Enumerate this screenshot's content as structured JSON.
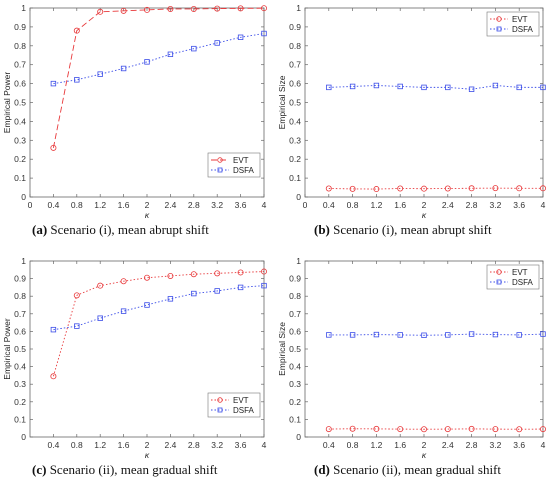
{
  "chart_data": [
    {
      "type": "line",
      "panel": "a",
      "x": [
        0.4,
        0.8,
        1.2,
        1.6,
        2.0,
        2.4,
        2.8,
        3.2,
        3.6,
        4.0
      ],
      "xlim": [
        0,
        4
      ],
      "ylim": [
        0,
        1
      ],
      "xticks": [
        "0",
        "0.4",
        "0.8",
        "1.2",
        "1.6",
        "2",
        "2.4",
        "2.8",
        "3.2",
        "3.6",
        "4"
      ],
      "yticks": [
        "0",
        "0.1",
        "0.2",
        "0.3",
        "0.4",
        "0.5",
        "0.6",
        "0.7",
        "0.8",
        "0.9",
        "1"
      ],
      "xlabel": "κ",
      "ylabel": "Empirical Power",
      "legend": "bottom-right",
      "series": [
        {
          "name": "EVT",
          "color": "#e8393b",
          "dash": "6,3",
          "marker": "circle",
          "values": [
            0.26,
            0.88,
            0.98,
            0.985,
            0.99,
            0.995,
            0.995,
            0.997,
            0.998,
            0.999
          ]
        },
        {
          "name": "DSFA",
          "color": "#3b4de8",
          "dash": "1.5,2",
          "marker": "square",
          "values": [
            0.6,
            0.62,
            0.65,
            0.68,
            0.715,
            0.755,
            0.785,
            0.815,
            0.845,
            0.865
          ]
        }
      ],
      "caption_label": "(a)",
      "caption_text": "Scenario (i), mean abrupt shift"
    },
    {
      "type": "line",
      "panel": "b",
      "x": [
        0.4,
        0.8,
        1.2,
        1.6,
        2.0,
        2.4,
        2.8,
        3.2,
        3.6,
        4.0
      ],
      "xlim": [
        0,
        4
      ],
      "ylim": [
        0,
        1
      ],
      "xticks": [
        "0",
        "0.4",
        "0.8",
        "1.2",
        "1.6",
        "2",
        "2.4",
        "2.8",
        "3.2",
        "3.6",
        "4"
      ],
      "yticks": [
        "0",
        "0.1",
        "0.2",
        "0.3",
        "0.4",
        "0.5",
        "0.6",
        "0.7",
        "0.8",
        "0.9",
        "1"
      ],
      "xlabel": "κ",
      "ylabel": "Empirical Size",
      "legend": "top-right",
      "series": [
        {
          "name": "EVT",
          "color": "#e8393b",
          "dash": "1.5,2",
          "marker": "circle",
          "values": [
            0.045,
            0.043,
            0.042,
            0.045,
            0.044,
            0.045,
            0.046,
            0.047,
            0.046,
            0.046
          ]
        },
        {
          "name": "DSFA",
          "color": "#3b4de8",
          "dash": "1.5,2",
          "marker": "square",
          "values": [
            0.58,
            0.585,
            0.59,
            0.585,
            0.58,
            0.58,
            0.57,
            0.59,
            0.58,
            0.58
          ]
        }
      ],
      "caption_label": "(b)",
      "caption_text": "Scenario (i), mean abrupt shift"
    },
    {
      "type": "line",
      "panel": "c",
      "x": [
        0.4,
        0.8,
        1.2,
        1.6,
        2.0,
        2.4,
        2.8,
        3.2,
        3.6,
        4.0
      ],
      "xlim": [
        0,
        4
      ],
      "ylim": [
        0,
        1
      ],
      "xticks": [
        "0.4",
        "0.8",
        "1.2",
        "1.6",
        "2",
        "2.4",
        "2.8",
        "3.2",
        "3.6",
        "4"
      ],
      "yticks": [
        "0",
        "0.1",
        "0.2",
        "0.3",
        "0.4",
        "0.5",
        "0.6",
        "0.7",
        "0.8",
        "0.9",
        "1"
      ],
      "xlabel": "κ",
      "ylabel": "Empirical Power",
      "legend": "bottom-right",
      "series": [
        {
          "name": "EVT",
          "color": "#e8393b",
          "dash": "1.5,2",
          "marker": "circle",
          "values": [
            0.345,
            0.805,
            0.86,
            0.885,
            0.905,
            0.915,
            0.925,
            0.93,
            0.935,
            0.94
          ]
        },
        {
          "name": "DSFA",
          "color": "#3b4de8",
          "dash": "1.5,2",
          "marker": "square",
          "values": [
            0.61,
            0.63,
            0.675,
            0.715,
            0.75,
            0.785,
            0.815,
            0.83,
            0.85,
            0.86
          ]
        }
      ],
      "caption_label": "(c)",
      "caption_text": "Scenario (ii), mean gradual shift"
    },
    {
      "type": "line",
      "panel": "d",
      "x": [
        0.4,
        0.8,
        1.2,
        1.6,
        2.0,
        2.4,
        2.8,
        3.2,
        3.6,
        4.0
      ],
      "xlim": [
        0,
        4
      ],
      "ylim": [
        0,
        1
      ],
      "xticks": [
        "0.4",
        "0.8",
        "1.2",
        "1.6",
        "2",
        "2.4",
        "2.8",
        "3.2",
        "3.6",
        "4"
      ],
      "yticks": [
        "0",
        "0.1",
        "0.2",
        "0.3",
        "0.4",
        "0.5",
        "0.6",
        "0.7",
        "0.8",
        "0.9",
        "1"
      ],
      "xlabel": "κ",
      "ylabel": "Empirical Size",
      "legend": "top-right",
      "series": [
        {
          "name": "EVT",
          "color": "#e8393b",
          "dash": "1.5,2",
          "marker": "circle",
          "values": [
            0.045,
            0.047,
            0.046,
            0.045,
            0.044,
            0.045,
            0.046,
            0.045,
            0.044,
            0.045
          ]
        },
        {
          "name": "DSFA",
          "color": "#3b4de8",
          "dash": "1.5,2",
          "marker": "square",
          "values": [
            0.58,
            0.58,
            0.582,
            0.58,
            0.578,
            0.58,
            0.585,
            0.582,
            0.58,
            0.585
          ]
        }
      ],
      "caption_label": "(d)",
      "caption_text": "Scenario (ii), mean gradual shift"
    }
  ]
}
